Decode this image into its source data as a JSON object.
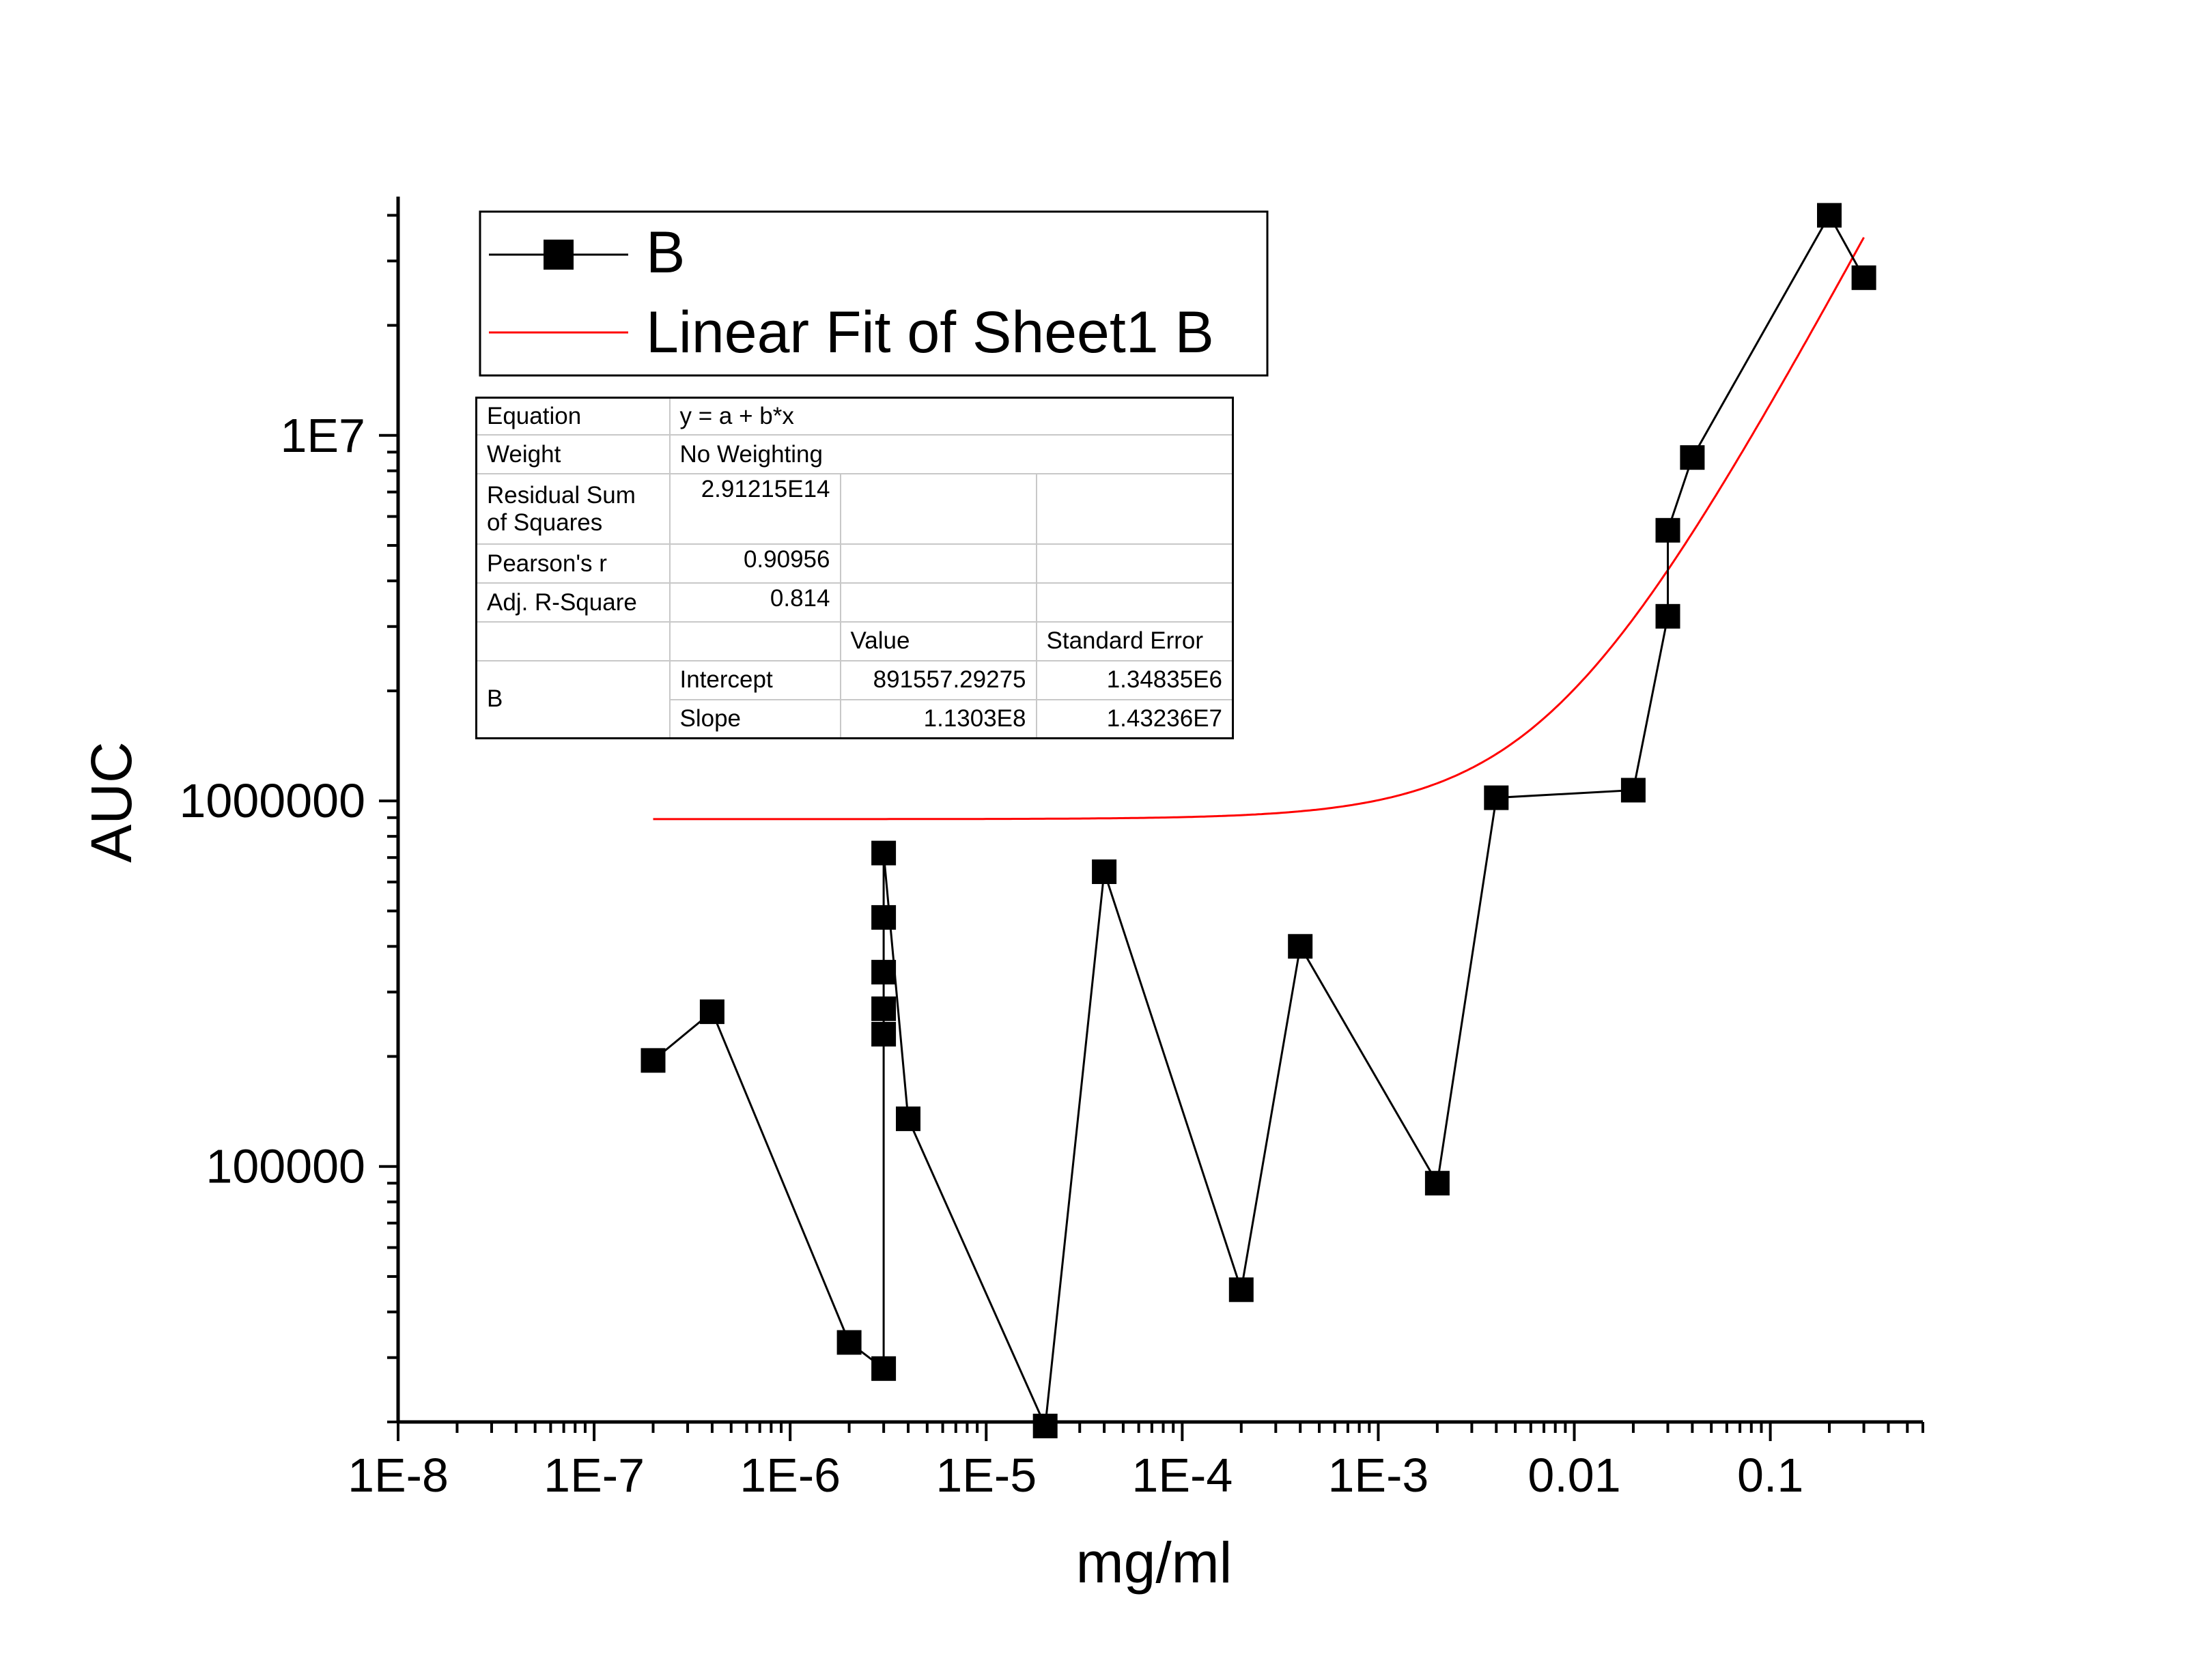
{
  "chart_data": {
    "type": "scatter",
    "xlabel": "mg/ml",
    "ylabel": "AUC",
    "x_scale": "log",
    "y_scale": "log",
    "xlim": [
      1e-08,
      0.6
    ],
    "ylim": [
      20000,
      45000000
    ],
    "x_tick_labels": [
      "1E-8",
      "1E-7",
      "1E-6",
      "1E-5",
      "1E-4",
      "1E-3",
      "0.01",
      "0.1"
    ],
    "y_tick_labels": [
      "100000",
      "1000000",
      "1E7"
    ],
    "y_tick_values": [
      100000,
      1000000,
      10000000
    ],
    "grid": false,
    "legend_position": "top-left",
    "series": [
      {
        "name": "B",
        "style": "line+square-markers",
        "color": "#000000",
        "points": [
          [
            2e-07,
            195000
          ],
          [
            4e-07,
            265000
          ],
          [
            2e-06,
            33000
          ],
          [
            3e-06,
            28000
          ],
          [
            3e-06,
            230000
          ],
          [
            3e-06,
            270000
          ],
          [
            3e-06,
            340000
          ],
          [
            3e-06,
            480000
          ],
          [
            3e-06,
            720000
          ],
          [
            4e-06,
            135000
          ],
          [
            2e-05,
            19500
          ],
          [
            4e-05,
            640000
          ],
          [
            0.0002,
            46000
          ],
          [
            0.0004,
            400000
          ],
          [
            0.002,
            90000
          ],
          [
            0.004,
            1020000
          ],
          [
            0.02,
            1070000
          ],
          [
            0.03,
            3200000
          ],
          [
            0.03,
            5500000
          ],
          [
            0.04,
            8700000
          ],
          [
            0.2,
            40000000
          ],
          [
            0.3,
            27000000
          ]
        ]
      },
      {
        "name": "Linear Fit of Sheet1 B",
        "style": "line",
        "color": "#ff0000",
        "intercept": 891557.29275,
        "slope": 113030000,
        "x_range": [
          2e-07,
          0.3
        ]
      }
    ],
    "fit_table": {
      "rows": [
        [
          "Equation",
          "y = a + b*x"
        ],
        [
          "Weight",
          "No Weighting"
        ],
        [
          "Residual Sum of Squares",
          "2.91215E14"
        ],
        [
          "Pearson's r",
          "0.90956"
        ],
        [
          "Adj. R-Square",
          "0.814"
        ]
      ],
      "col_headers": [
        "Value",
        "Standard Error"
      ],
      "param_group": "B",
      "params": [
        {
          "name": "Intercept",
          "value": "891557.29275",
          "error": "1.34835E6"
        },
        {
          "name": "Slope",
          "value": "1.1303E8",
          "error": "1.43236E7"
        }
      ]
    }
  }
}
